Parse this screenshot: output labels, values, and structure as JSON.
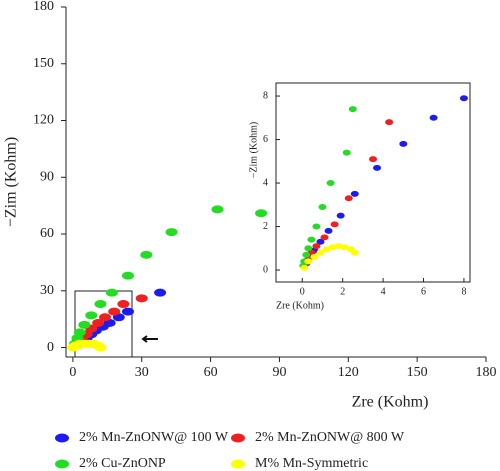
{
  "chart_data": [
    {
      "type": "scatter",
      "x_label": "Zre (Kohm)",
      "y_label": "−Zim (Kohm)",
      "xlim": [
        -3,
        180
      ],
      "ylim": [
        -5,
        180
      ],
      "xticks": [
        0,
        30,
        60,
        90,
        120,
        150,
        180
      ],
      "yticks": [
        0,
        30,
        60,
        90,
        120,
        150,
        180
      ],
      "legend": "bottom",
      "series": [
        {
          "name": "2% Mn-ZnONW@ 100 W",
          "color": "#1c1cf0",
          "x": [
            1,
            2,
            3,
            4,
            6,
            8,
            10,
            13,
            16,
            20,
            24,
            38
          ],
          "values": [
            1,
            2,
            3,
            4,
            5,
            7,
            9,
            11,
            13,
            16,
            19,
            29
          ]
        },
        {
          "name": "2% Mn-ZnONW@ 800 W",
          "color": "#f02020",
          "x": [
            1,
            2,
            4,
            6,
            8,
            11,
            14,
            18,
            22,
            30
          ],
          "values": [
            1,
            3,
            5,
            7,
            10,
            13,
            16,
            19,
            23,
            26
          ]
        },
        {
          "name": "2% Cu-ZnONP",
          "color": "#22dd22",
          "x": [
            1,
            2,
            3,
            5,
            8,
            12,
            17,
            24,
            32,
            43,
            63,
            82
          ],
          "values": [
            2,
            5,
            8,
            12,
            17,
            23,
            29,
            38,
            49,
            61,
            73,
            71
          ]
        },
        {
          "name": "M% Mn-Symmetric",
          "color": "#ffff00",
          "x": [
            0,
            1,
            2,
            3,
            5,
            7,
            9,
            11,
            12
          ],
          "values": [
            0,
            1,
            1,
            2,
            2,
            2,
            2,
            1,
            0
          ]
        }
      ]
    },
    {
      "type": "scatter",
      "x_label": "Zre (Kohm)",
      "y_label": "−Zim (Kohm)",
      "xlim": [
        -1.3,
        8.3
      ],
      "ylim": [
        -0.55,
        8.6
      ],
      "xticks": [
        0,
        2,
        4,
        6,
        8
      ],
      "yticks": [
        0,
        2,
        4,
        6,
        8
      ],
      "series": [
        {
          "color": "#1c1cf0",
          "x": [
            8.0,
            6.5,
            5.0,
            3.7,
            2.6,
            1.9,
            1.3,
            0.9,
            0.6,
            0.35,
            0.2
          ],
          "values": [
            7.9,
            7.0,
            5.8,
            4.7,
            3.5,
            2.5,
            1.8,
            1.3,
            0.9,
            0.6,
            0.3
          ]
        },
        {
          "color": "#f02020",
          "x": [
            4.3,
            3.5,
            2.3,
            1.6,
            1.1,
            0.7,
            0.45,
            0.3,
            0.15
          ],
          "values": [
            6.8,
            5.1,
            3.3,
            2.1,
            1.5,
            1.1,
            0.8,
            0.5,
            0.3
          ]
        },
        {
          "color": "#22dd22",
          "x": [
            2.5,
            2.2,
            1.4,
            1.0,
            0.7,
            0.45,
            0.3,
            0.2,
            0.1,
            0.05
          ],
          "values": [
            7.4,
            5.4,
            4.0,
            2.9,
            2.0,
            1.4,
            1.0,
            0.7,
            0.4,
            0.2
          ]
        },
        {
          "color": "#ffff00",
          "x": [
            0.1,
            0.3,
            0.6,
            0.9,
            1.2,
            1.5,
            1.8,
            2.1,
            2.4,
            2.6
          ],
          "values": [
            0.1,
            0.4,
            0.6,
            0.8,
            0.95,
            1.05,
            1.1,
            1.05,
            0.95,
            0.8
          ]
        }
      ]
    }
  ]
}
